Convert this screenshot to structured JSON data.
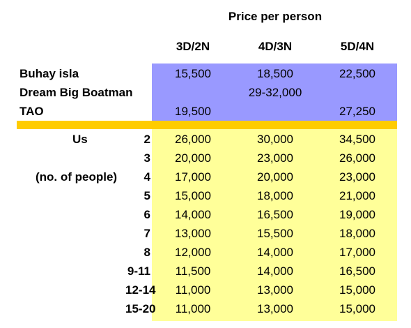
{
  "title": "Price per person",
  "columns": [
    "3D/2N",
    "4D/3N",
    "5D/4N"
  ],
  "operators": [
    {
      "name": "Buhay isla",
      "prices": [
        "15,500",
        "18,500",
        "22,500"
      ]
    },
    {
      "name": "Dream Big Boatman",
      "prices": [
        "",
        "29-32,000",
        ""
      ]
    },
    {
      "name": "TAO",
      "prices": [
        "19,500",
        "",
        "27,250"
      ]
    }
  ],
  "us_label": "Us",
  "people_label": "(no. of people)",
  "us_rows": [
    {
      "people": "2",
      "prices": [
        "26,000",
        "30,000",
        "34,500"
      ]
    },
    {
      "people": "3",
      "prices": [
        "20,000",
        "23,000",
        "26,000"
      ]
    },
    {
      "people": "4",
      "prices": [
        "17,000",
        "20,000",
        "23,000"
      ]
    },
    {
      "people": "5",
      "prices": [
        "15,000",
        "18,000",
        "21,000"
      ]
    },
    {
      "people": "6",
      "prices": [
        "14,000",
        "16,500",
        "19,000"
      ]
    },
    {
      "people": "7",
      "prices": [
        "13,000",
        "15,500",
        "18,000"
      ]
    },
    {
      "people": "8",
      "prices": [
        "12,000",
        "14,000",
        "17,000"
      ]
    },
    {
      "people": "9-11",
      "prices": [
        "11,500",
        "14,000",
        "16,500"
      ]
    },
    {
      "people": "12-14",
      "prices": [
        "11,000",
        "13,000",
        "15,000"
      ]
    },
    {
      "people": "15-20",
      "prices": [
        "11,000",
        "13,000",
        "15,000"
      ]
    }
  ],
  "colors": {
    "operators_band": "#9999ff",
    "divider": "#ffcc00",
    "us_band": "#ffff99"
  }
}
